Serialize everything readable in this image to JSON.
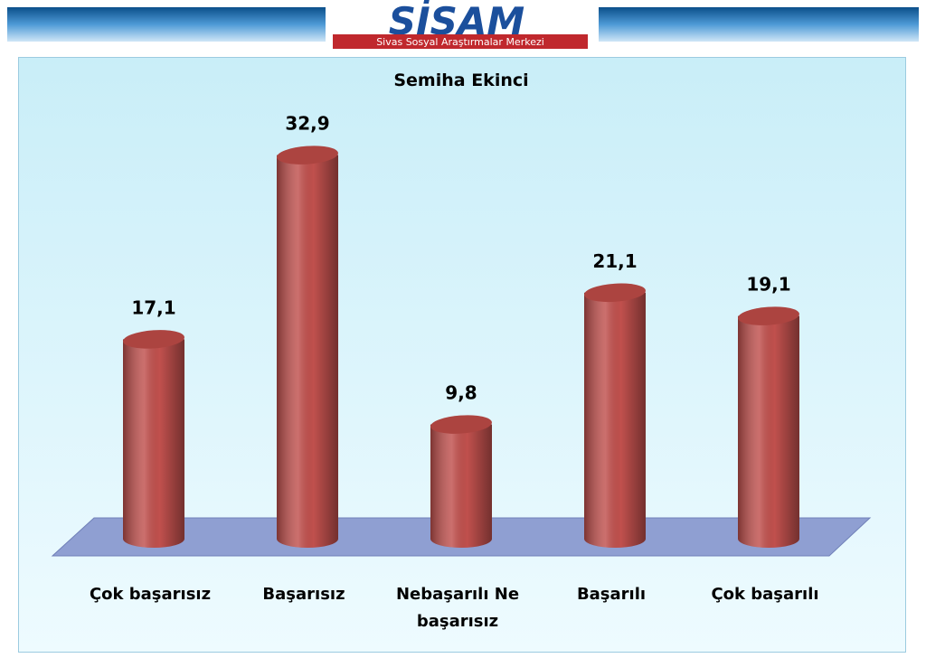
{
  "header": {
    "logo": "SİSAM",
    "subtitle": "Sivas Sosyal Araştırmalar Merkezi"
  },
  "chart_data": {
    "type": "bar",
    "title": "Semiha Ekinci",
    "categories": [
      "Çok başarısız",
      "Başarısız",
      "Nebaşarılı  Ne başarısız",
      "Başarılı",
      "Çok başarılı"
    ],
    "values": [
      17.1,
      32.9,
      9.8,
      21.1,
      19.1
    ],
    "value_labels": [
      "17,1",
      "32,9",
      "9,8",
      "21,1",
      "19,1"
    ],
    "color": "#c0504d"
  }
}
